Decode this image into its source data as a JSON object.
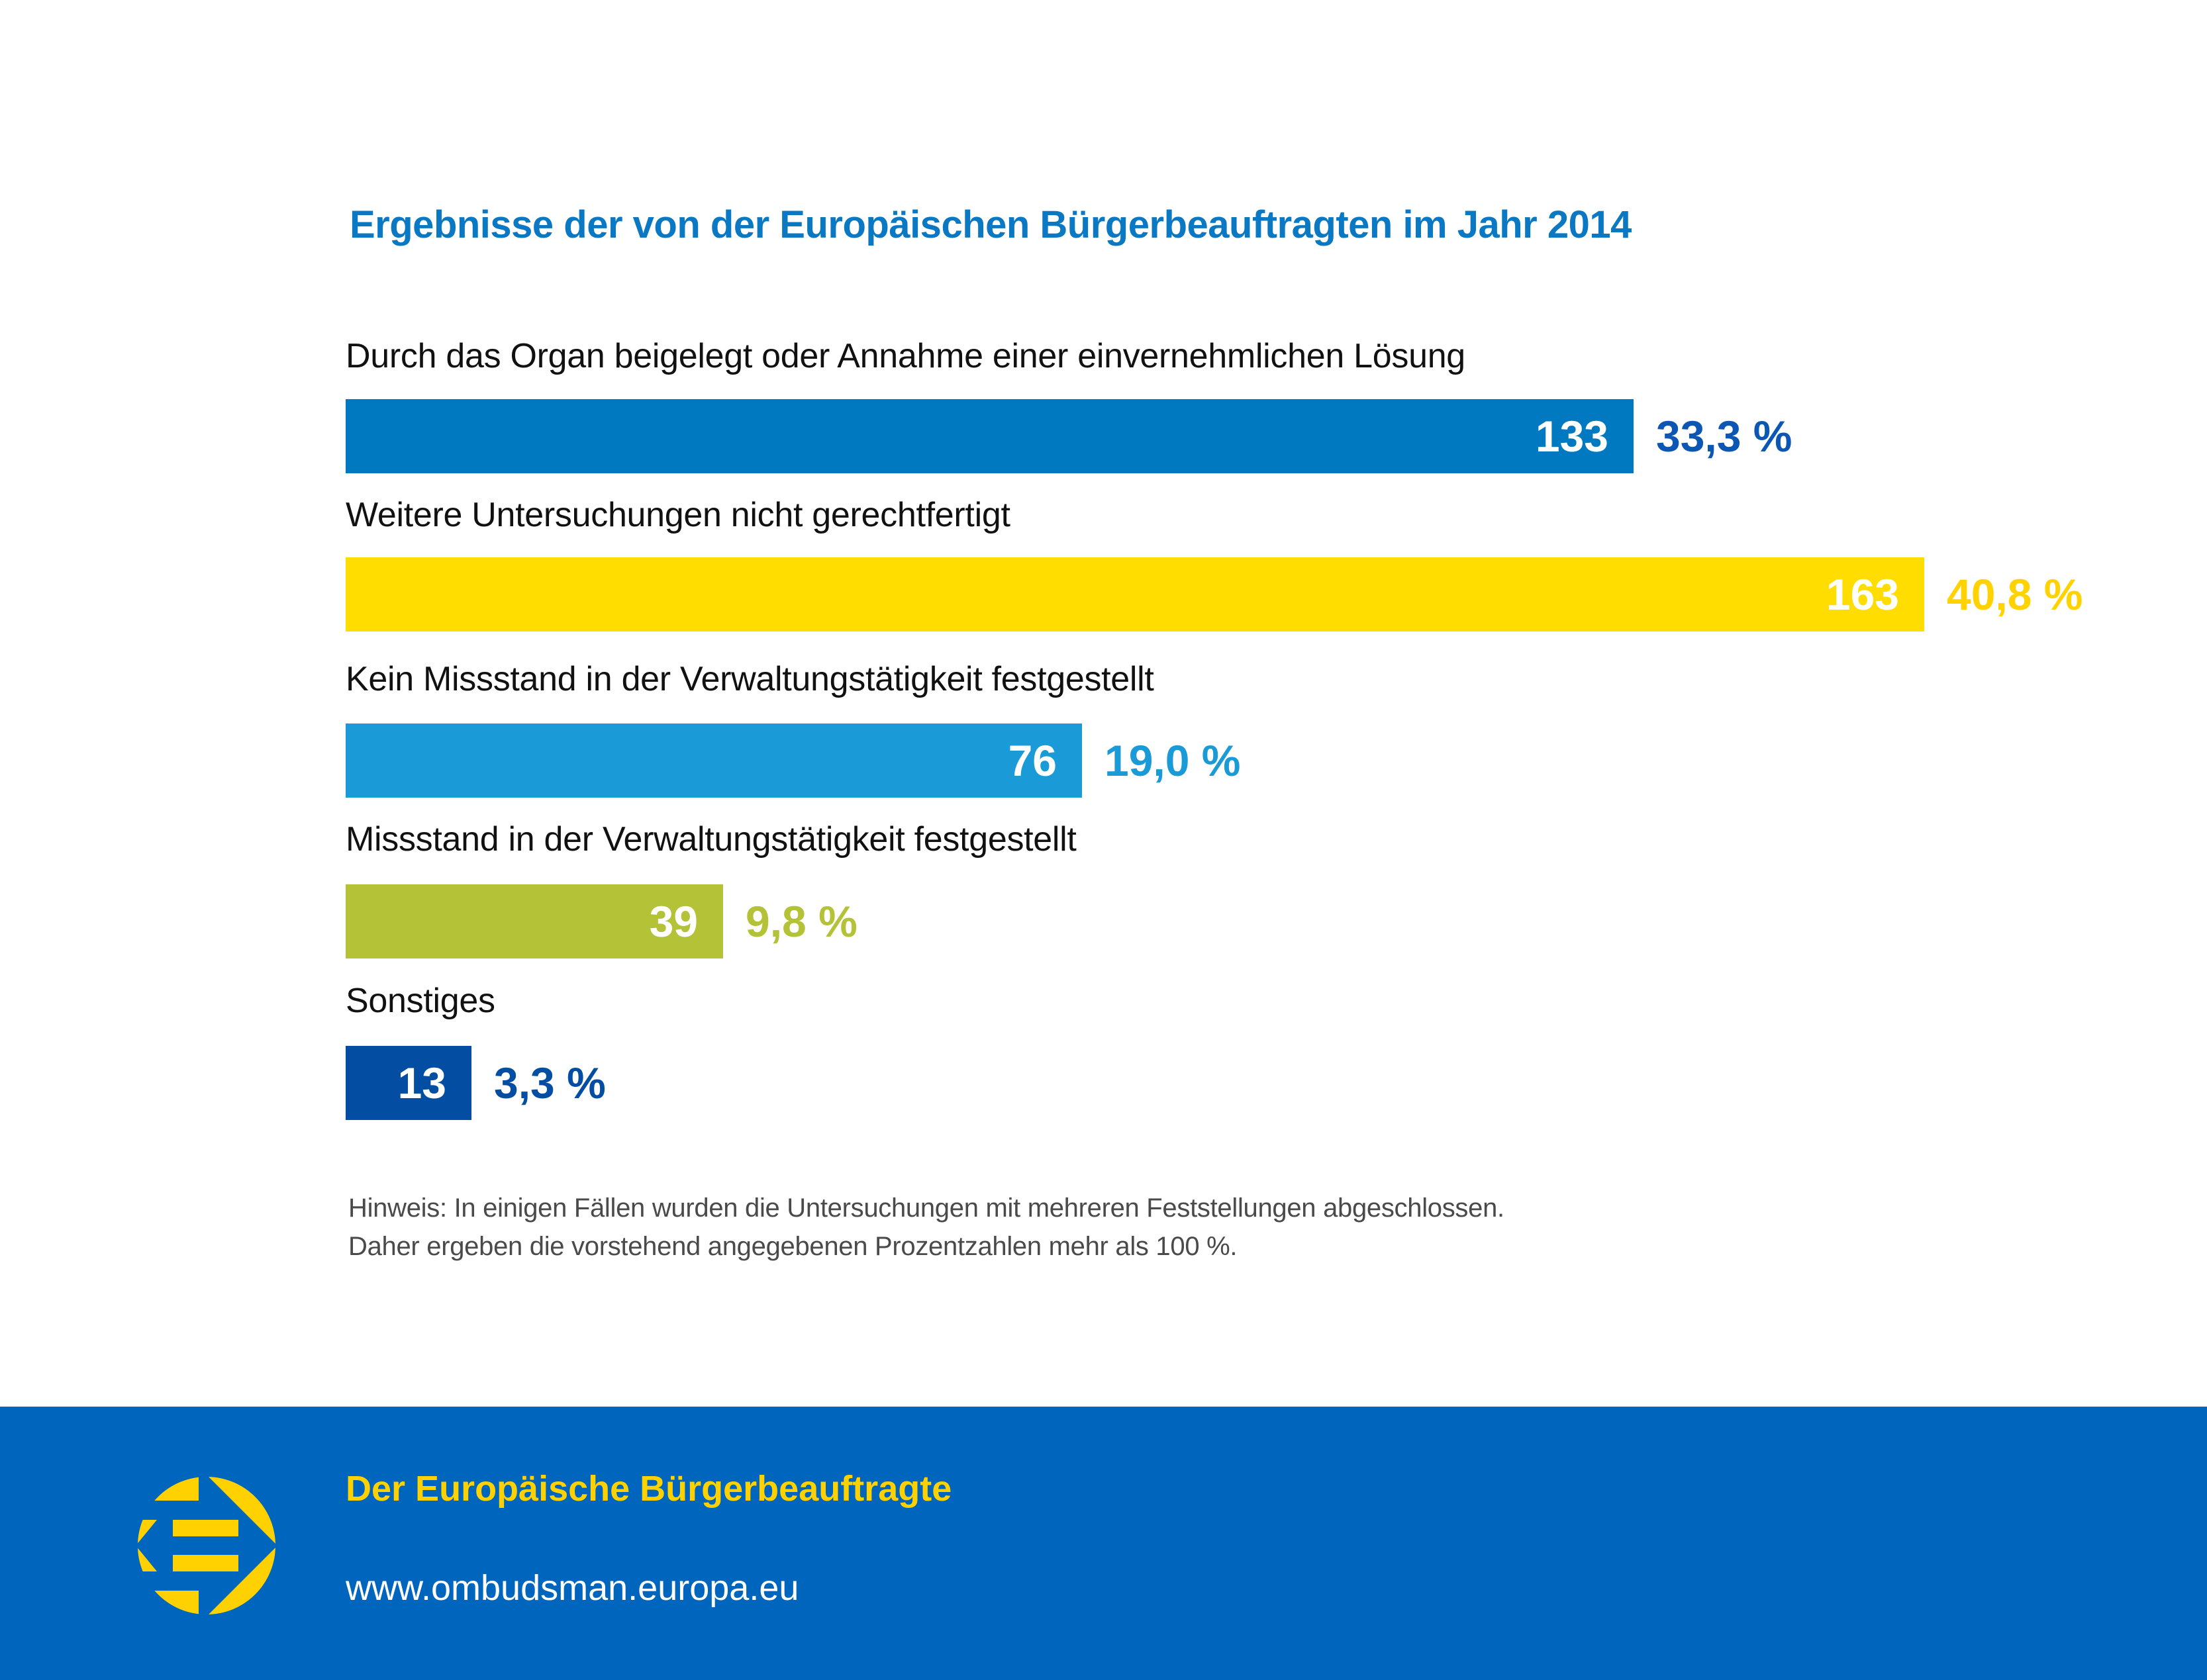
{
  "chart_data": {
    "type": "bar",
    "orientation": "horizontal",
    "title": "Ergebnisse der von der Europäischen Bürgerbeauftragten im Jahr 2014",
    "xlabel": "",
    "ylabel": "",
    "grid": false,
    "categories": [
      "Durch das Organ beigelegt oder Annahme einer einvernehmlichen Lösung",
      "Weitere Untersuchungen nicht gerechtfertigt",
      "Kein Missstand in der Verwaltungstätigkeit festgestellt",
      "Missstand in der Verwaltungstätigkeit festgestellt",
      "Sonstiges"
    ],
    "values": [
      133,
      163,
      76,
      39,
      13
    ],
    "percent_labels": [
      "33,3 %",
      "40,8 %",
      "19,0 %",
      "9,8 %",
      "3,3 %"
    ],
    "percentages": [
      33.3,
      40.8,
      19.0,
      9.8,
      3.3
    ],
    "value_labels": [
      "133",
      "163",
      "76",
      "39",
      "13"
    ],
    "colors": [
      "#0079c1",
      "#ffdd00",
      "#1a9bd7",
      "#b3c236",
      "#034ea2"
    ],
    "label_colors": [
      "#0b57b3",
      "#ffd200",
      "#1a9bd7",
      "#b3c236",
      "#034ea2"
    ],
    "xlim": [
      0,
      163
    ]
  },
  "note": {
    "line1": "Hinweis: In einigen Fällen wurden die Untersuchungen mit mehreren Feststellungen abgeschlossen.",
    "line2": "Daher ergeben die vorstehend angegebenen Prozentzahlen mehr als 100 %."
  },
  "footer": {
    "title": "Der Europäische Bürgerbeauftragte",
    "url": "www.ombudsman.europa.eu",
    "background": "#0066bd",
    "accent": "#ffd100",
    "logo_icon": "european-ombudsman-logo-icon"
  }
}
